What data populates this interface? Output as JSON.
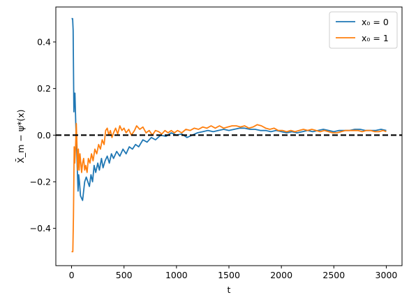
{
  "chart_data": {
    "type": "line",
    "xlabel": "t",
    "ylabel": "X̄_m − ψ*(x)",
    "xlim": [
      -150,
      3150
    ],
    "ylim": [
      -0.56,
      0.55
    ],
    "xticks": [
      0,
      500,
      1000,
      1500,
      2000,
      2500,
      3000
    ],
    "xtick_labels": [
      "0",
      "500",
      "1000",
      "1500",
      "2000",
      "2500",
      "3000"
    ],
    "yticks": [
      -0.4,
      -0.2,
      0.0,
      0.2,
      0.4
    ],
    "ytick_labels": [
      "−0.4",
      "−0.2",
      "0.0",
      "0.2",
      "0.4"
    ],
    "grid": false,
    "legend_position": "top-right",
    "reference_line": {
      "y": 0,
      "style": "dashed",
      "color": "#000000"
    },
    "series": [
      {
        "name": "x₀ = 0",
        "color": "#1f77b4",
        "points": [
          [
            0,
            0.5
          ],
          [
            10,
            0.5
          ],
          [
            15,
            0.45
          ],
          [
            22,
            0.1
          ],
          [
            28,
            0.18
          ],
          [
            32,
            0.18
          ],
          [
            40,
            0.05
          ],
          [
            48,
            -0.05
          ],
          [
            55,
            -0.15
          ],
          [
            62,
            -0.24
          ],
          [
            68,
            -0.17
          ],
          [
            75,
            -0.2
          ],
          [
            85,
            -0.26
          ],
          [
            95,
            -0.27
          ],
          [
            105,
            -0.28
          ],
          [
            115,
            -0.24
          ],
          [
            125,
            -0.2
          ],
          [
            140,
            -0.18
          ],
          [
            155,
            -0.2
          ],
          [
            170,
            -0.22
          ],
          [
            185,
            -0.17
          ],
          [
            200,
            -0.2
          ],
          [
            215,
            -0.13
          ],
          [
            230,
            -0.16
          ],
          [
            250,
            -0.12
          ],
          [
            265,
            -0.15
          ],
          [
            285,
            -0.1
          ],
          [
            300,
            -0.14
          ],
          [
            320,
            -0.11
          ],
          [
            340,
            -0.09
          ],
          [
            360,
            -0.12
          ],
          [
            380,
            -0.08
          ],
          [
            400,
            -0.1
          ],
          [
            430,
            -0.07
          ],
          [
            460,
            -0.09
          ],
          [
            490,
            -0.06
          ],
          [
            520,
            -0.08
          ],
          [
            550,
            -0.05
          ],
          [
            580,
            -0.06
          ],
          [
            610,
            -0.04
          ],
          [
            640,
            -0.05
          ],
          [
            680,
            -0.02
          ],
          [
            720,
            -0.03
          ],
          [
            760,
            -0.01
          ],
          [
            800,
            -0.02
          ],
          [
            850,
            0.0
          ],
          [
            900,
            -0.005
          ],
          [
            950,
            0.01
          ],
          [
            1000,
            0.0
          ],
          [
            1050,
            0.005
          ],
          [
            1100,
            -0.01
          ],
          [
            1150,
            0.0
          ],
          [
            1200,
            0.01
          ],
          [
            1250,
            0.015
          ],
          [
            1300,
            0.02
          ],
          [
            1350,
            0.015
          ],
          [
            1400,
            0.02
          ],
          [
            1450,
            0.025
          ],
          [
            1500,
            0.02
          ],
          [
            1550,
            0.025
          ],
          [
            1600,
            0.03
          ],
          [
            1650,
            0.03
          ],
          [
            1700,
            0.025
          ],
          [
            1750,
            0.025
          ],
          [
            1800,
            0.02
          ],
          [
            1850,
            0.02
          ],
          [
            1900,
            0.015
          ],
          [
            1950,
            0.02
          ],
          [
            2000,
            0.015
          ],
          [
            2050,
            0.01
          ],
          [
            2100,
            0.015
          ],
          [
            2150,
            0.01
          ],
          [
            2200,
            0.015
          ],
          [
            2250,
            0.02
          ],
          [
            2300,
            0.015
          ],
          [
            2350,
            0.02
          ],
          [
            2400,
            0.025
          ],
          [
            2450,
            0.02
          ],
          [
            2500,
            0.015
          ],
          [
            2550,
            0.02
          ],
          [
            2600,
            0.02
          ],
          [
            2650,
            0.02
          ],
          [
            2700,
            0.025
          ],
          [
            2750,
            0.025
          ],
          [
            2800,
            0.02
          ],
          [
            2850,
            0.02
          ],
          [
            2900,
            0.02
          ],
          [
            2950,
            0.025
          ],
          [
            3000,
            0.02
          ]
        ]
      },
      {
        "name": "x₀ = 1",
        "color": "#ff7f0e",
        "points": [
          [
            0,
            -0.5
          ],
          [
            12,
            -0.5
          ],
          [
            18,
            -0.35
          ],
          [
            25,
            -0.05
          ],
          [
            30,
            -0.12
          ],
          [
            38,
            -0.05
          ],
          [
            45,
            0.05
          ],
          [
            52,
            -0.05
          ],
          [
            58,
            -0.15
          ],
          [
            65,
            -0.06
          ],
          [
            72,
            -0.15
          ],
          [
            80,
            -0.08
          ],
          [
            88,
            -0.12
          ],
          [
            96,
            -0.16
          ],
          [
            105,
            -0.12
          ],
          [
            115,
            -0.1
          ],
          [
            125,
            -0.15
          ],
          [
            135,
            -0.13
          ],
          [
            148,
            -0.16
          ],
          [
            160,
            -0.1
          ],
          [
            175,
            -0.12
          ],
          [
            190,
            -0.08
          ],
          [
            205,
            -0.11
          ],
          [
            222,
            -0.06
          ],
          [
            240,
            -0.08
          ],
          [
            258,
            -0.04
          ],
          [
            275,
            -0.06
          ],
          [
            292,
            -0.02
          ],
          [
            310,
            -0.04
          ],
          [
            325,
            0.02
          ],
          [
            340,
            0.03
          ],
          [
            355,
            0.0
          ],
          [
            370,
            0.02
          ],
          [
            385,
            -0.01
          ],
          [
            400,
            0.01
          ],
          [
            420,
            0.03
          ],
          [
            440,
            0.005
          ],
          [
            460,
            0.04
          ],
          [
            480,
            0.02
          ],
          [
            500,
            0.03
          ],
          [
            520,
            0.01
          ],
          [
            545,
            0.025
          ],
          [
            570,
            0.0
          ],
          [
            600,
            0.02
          ],
          [
            620,
            0.04
          ],
          [
            650,
            0.025
          ],
          [
            680,
            0.035
          ],
          [
            710,
            0.01
          ],
          [
            740,
            0.02
          ],
          [
            770,
            0.0
          ],
          [
            800,
            0.02
          ],
          [
            830,
            0.015
          ],
          [
            860,
            0.005
          ],
          [
            890,
            0.02
          ],
          [
            920,
            0.01
          ],
          [
            950,
            0.02
          ],
          [
            980,
            0.01
          ],
          [
            1010,
            0.02
          ],
          [
            1050,
            0.01
          ],
          [
            1090,
            0.025
          ],
          [
            1130,
            0.02
          ],
          [
            1170,
            0.03
          ],
          [
            1210,
            0.025
          ],
          [
            1250,
            0.035
          ],
          [
            1290,
            0.03
          ],
          [
            1330,
            0.04
          ],
          [
            1370,
            0.03
          ],
          [
            1410,
            0.04
          ],
          [
            1450,
            0.03
          ],
          [
            1490,
            0.035
          ],
          [
            1530,
            0.04
          ],
          [
            1570,
            0.04
          ],
          [
            1610,
            0.035
          ],
          [
            1650,
            0.04
          ],
          [
            1690,
            0.03
          ],
          [
            1730,
            0.035
          ],
          [
            1770,
            0.045
          ],
          [
            1810,
            0.04
          ],
          [
            1850,
            0.03
          ],
          [
            1890,
            0.025
          ],
          [
            1930,
            0.03
          ],
          [
            1970,
            0.02
          ],
          [
            2010,
            0.02
          ],
          [
            2050,
            0.015
          ],
          [
            2090,
            0.02
          ],
          [
            2130,
            0.015
          ],
          [
            2170,
            0.02
          ],
          [
            2210,
            0.025
          ],
          [
            2250,
            0.02
          ],
          [
            2290,
            0.025
          ],
          [
            2330,
            0.02
          ],
          [
            2370,
            0.015
          ],
          [
            2410,
            0.02
          ],
          [
            2450,
            0.015
          ],
          [
            2490,
            0.01
          ],
          [
            2530,
            0.01
          ],
          [
            2570,
            0.015
          ],
          [
            2610,
            0.02
          ],
          [
            2650,
            0.02
          ],
          [
            2690,
            0.02
          ],
          [
            2730,
            0.02
          ],
          [
            2770,
            0.015
          ],
          [
            2810,
            0.02
          ],
          [
            2850,
            0.02
          ],
          [
            2890,
            0.015
          ],
          [
            2930,
            0.015
          ],
          [
            2970,
            0.02
          ],
          [
            3000,
            0.015
          ]
        ]
      }
    ]
  }
}
